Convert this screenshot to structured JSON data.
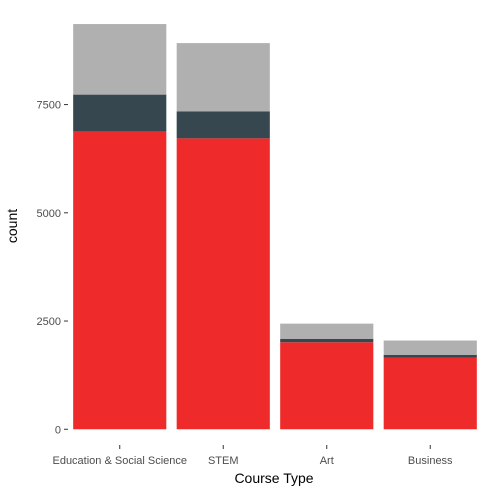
{
  "chart_data": {
    "type": "bar",
    "stacked": true,
    "title": "",
    "xlabel": "Course Type",
    "ylabel": "count",
    "categories": [
      "Education & Social Science",
      "STEM",
      "Art",
      "Business"
    ],
    "series": [
      {
        "values": [
          6880,
          6720,
          2010,
          1650
        ],
        "color": "#ee2a2b"
      },
      {
        "values": [
          850,
          620,
          80,
          70
        ],
        "color": "#36474f"
      },
      {
        "values": [
          1630,
          1580,
          350,
          330
        ],
        "color": "#b0b0b0"
      }
    ],
    "yticks": [
      0,
      2500,
      5000,
      7500
    ],
    "ytick_labels": [
      "0",
      "2500",
      "5000",
      "7500"
    ],
    "ylim": [
      -225,
      9800
    ],
    "grid": false,
    "legend": "none"
  }
}
